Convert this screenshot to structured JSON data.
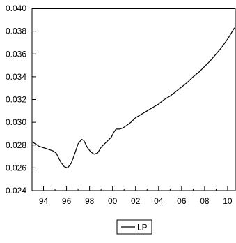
{
  "chart_data": {
    "type": "line",
    "title": "",
    "xlabel": "",
    "ylabel": "",
    "xlim": [
      1993.0,
      2010.67
    ],
    "ylim": [
      0.024,
      0.04
    ],
    "grid": false,
    "legend_position": "bottom-center",
    "x_ticks": [
      1994,
      1996,
      1998,
      2000,
      2002,
      2004,
      2006,
      2008,
      2010
    ],
    "x_tick_labels": [
      "94",
      "96",
      "98",
      "00",
      "02",
      "04",
      "06",
      "08",
      "10"
    ],
    "y_ticks": [
      0.024,
      0.026,
      0.028,
      0.03,
      0.032,
      0.034,
      0.036,
      0.038,
      0.04
    ],
    "y_tick_labels": [
      "0.024",
      "0.026",
      "0.028",
      "0.030",
      "0.032",
      "0.034",
      "0.036",
      "0.038",
      "0.040"
    ],
    "series": [
      {
        "name": "LP",
        "color": "#000000",
        "points": [
          [
            1993.0,
            0.0283
          ],
          [
            1993.3,
            0.0281
          ],
          [
            1993.6,
            0.0279
          ],
          [
            1993.9,
            0.0278
          ],
          [
            1994.2,
            0.0277
          ],
          [
            1994.5,
            0.0276
          ],
          [
            1994.8,
            0.0275
          ],
          [
            1995.1,
            0.0273
          ],
          [
            1995.3,
            0.0269
          ],
          [
            1995.5,
            0.0265
          ],
          [
            1995.8,
            0.0261
          ],
          [
            1996.1,
            0.026
          ],
          [
            1996.4,
            0.0264
          ],
          [
            1996.7,
            0.0272
          ],
          [
            1997.0,
            0.0281
          ],
          [
            1997.3,
            0.0285
          ],
          [
            1997.5,
            0.0284
          ],
          [
            1997.8,
            0.0278
          ],
          [
            1998.1,
            0.0274
          ],
          [
            1998.4,
            0.0272
          ],
          [
            1998.7,
            0.0273
          ],
          [
            1999.0,
            0.0278
          ],
          [
            1999.3,
            0.0281
          ],
          [
            1999.6,
            0.0284
          ],
          [
            1999.9,
            0.0287
          ],
          [
            2000.1,
            0.0291
          ],
          [
            2000.3,
            0.0294
          ],
          [
            2000.6,
            0.0294
          ],
          [
            2000.9,
            0.0295
          ],
          [
            2001.2,
            0.0297
          ],
          [
            2001.6,
            0.03
          ],
          [
            2002.0,
            0.0304
          ],
          [
            2002.5,
            0.0307
          ],
          [
            2003.0,
            0.031
          ],
          [
            2003.5,
            0.0313
          ],
          [
            2004.0,
            0.0316
          ],
          [
            2004.5,
            0.032
          ],
          [
            2005.0,
            0.0323
          ],
          [
            2005.5,
            0.0327
          ],
          [
            2006.0,
            0.0331
          ],
          [
            2006.5,
            0.0335
          ],
          [
            2007.0,
            0.034
          ],
          [
            2007.5,
            0.0344
          ],
          [
            2008.0,
            0.0349
          ],
          [
            2008.5,
            0.0354
          ],
          [
            2009.0,
            0.036
          ],
          [
            2009.5,
            0.0366
          ],
          [
            2010.0,
            0.0373
          ],
          [
            2010.3,
            0.0378
          ],
          [
            2010.6,
            0.0383
          ]
        ]
      }
    ],
    "legend": [
      {
        "label": "LP"
      }
    ]
  }
}
